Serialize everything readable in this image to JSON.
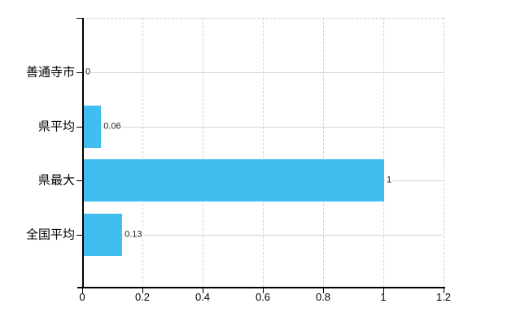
{
  "chart_data": {
    "type": "bar",
    "orientation": "horizontal",
    "title": "",
    "xlabel": "",
    "ylabel": "",
    "categories": [
      "善通寺市",
      "県平均",
      "県最大",
      "全国平均"
    ],
    "values": [
      0,
      0.06,
      1,
      0.13
    ],
    "value_labels": [
      "0",
      "0.06",
      "1",
      "0.13"
    ],
    "x_ticks": [
      "0",
      "0.2",
      "0.4",
      "0.6",
      "0.8",
      "1",
      "1.2"
    ],
    "x_tick_values": [
      0,
      0.2,
      0.4,
      0.6,
      0.8,
      1,
      1.2
    ],
    "xlim": [
      0,
      1.2
    ],
    "grid": "on",
    "legend": "none"
  },
  "colors": {
    "bar": "#41bef0",
    "vertical_grid": "#d2d2d6",
    "horizontal_grid": "#ccd6cc",
    "axis": "#000000",
    "text": "#000000",
    "value_text": "#1a1a1a",
    "background": "#ffffff"
  }
}
